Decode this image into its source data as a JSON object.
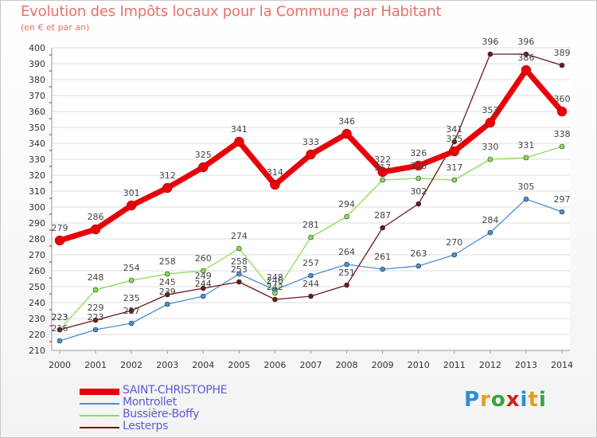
{
  "title": "Evolution des Impôts locaux pour la Commune par Habitant",
  "subtitle": "(en € et par an)",
  "logo_text": "Proxiti",
  "chart_data": {
    "type": "line",
    "x": [
      "2000",
      "2001",
      "2002",
      "2003",
      "2004",
      "2005",
      "2006",
      "2007",
      "2008",
      "2009",
      "2010",
      "2011",
      "2012",
      "2013",
      "2014"
    ],
    "ylim": [
      210,
      400
    ],
    "yticks": [
      210,
      220,
      230,
      240,
      250,
      260,
      270,
      280,
      290,
      300,
      310,
      320,
      330,
      340,
      350,
      360,
      370,
      380,
      390,
      400
    ],
    "grid": "horizontal",
    "legend_placement": "bottom-left",
    "series": [
      {
        "name": "SAINT-CHRISTOPHE",
        "color": "#e8000a",
        "values": [
          279,
          286,
          301,
          312,
          325,
          341,
          314,
          333,
          346,
          322,
          326,
          335,
          353,
          386,
          360
        ]
      },
      {
        "name": "Montrollet",
        "color": "#4a8fd0",
        "values": [
          216,
          223,
          227,
          239,
          244,
          258,
          248,
          257,
          264,
          261,
          263,
          270,
          284,
          305,
          297
        ]
      },
      {
        "name": "Bussière-Boffy",
        "color": "#88dd55",
        "values": [
          223,
          248,
          254,
          258,
          260,
          274,
          246,
          281,
          294,
          317,
          318,
          317,
          330,
          331,
          338
        ]
      },
      {
        "name": "Lesterps",
        "color": "#6b1a1a",
        "values": [
          223,
          229,
          235,
          245,
          249,
          253,
          242,
          244,
          251,
          287,
          302,
          341,
          396,
          396,
          389
        ]
      }
    ]
  }
}
